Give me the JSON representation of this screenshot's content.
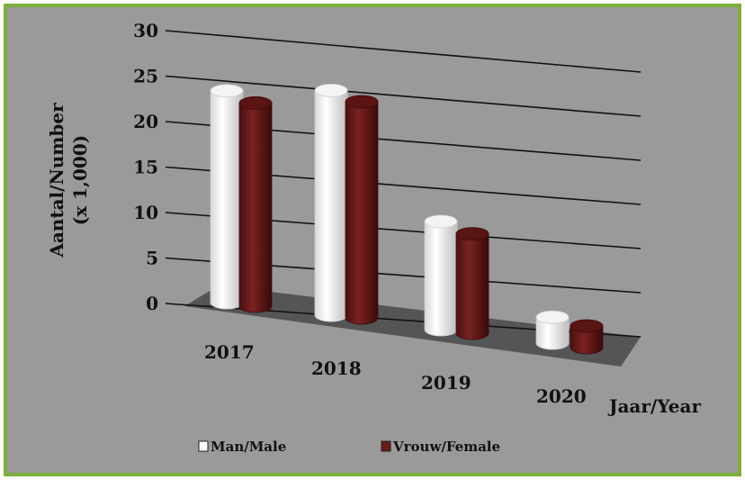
{
  "chart_data": {
    "type": "bar",
    "style": "3d-cylinder",
    "categories": [
      "2017",
      "2018",
      "2019",
      "2020"
    ],
    "series": [
      {
        "name": "Man/Male",
        "values": [
          24.5,
          26,
          12.5,
          3
        ],
        "color": "#ffffff"
      },
      {
        "name": "Vrouw/Female",
        "values": [
          23.5,
          25,
          11.5,
          2.5
        ],
        "color": "#6b1a1a"
      }
    ],
    "ylabel": "Aantal/Number",
    "ylabel_unit": "(x 1,000)",
    "xlabel": "Jaar/Year",
    "ylim": [
      0,
      30
    ],
    "yticks": [
      "0",
      "5",
      "10",
      "15",
      "20",
      "25",
      "30"
    ],
    "grid": true,
    "legend_position": "bottom",
    "colors": {
      "background": "#9a9a9a",
      "floor": "#555555",
      "border": "#7fae3a"
    }
  }
}
